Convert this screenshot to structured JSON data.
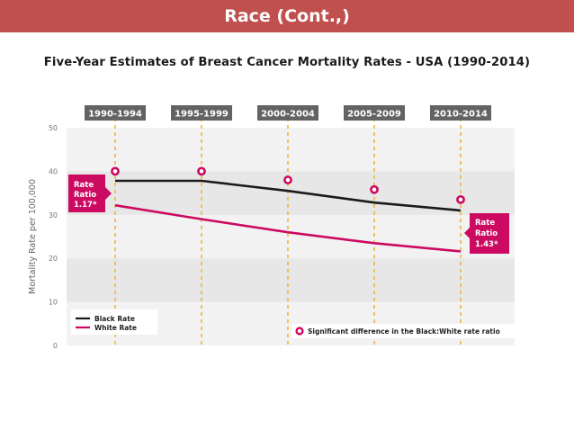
{
  "header": {
    "title": "Race (Cont.,)"
  },
  "chart_data": {
    "type": "line",
    "title": "Five-Year Estimates of Breast Cancer Mortality Rates - USA (1990-2014)",
    "categories": [
      "1990-1994",
      "1995-1999",
      "2000-2004",
      "2005-2009",
      "2010-2014"
    ],
    "ylabel": "Mortality Rate per 100,000",
    "ylim": [
      0,
      50
    ],
    "yticks": [
      0,
      10,
      20,
      30,
      40,
      50
    ],
    "series": [
      {
        "name": "Black Rate",
        "color": "#1a1a1a",
        "values": [
          37.8,
          37.8,
          35.5,
          32.8,
          31.0
        ]
      },
      {
        "name": "White Rate",
        "color": "#cc0a61",
        "values": [
          32.2,
          29.0,
          26.0,
          23.5,
          21.6
        ]
      }
    ],
    "significance_markers": [
      40.0,
      40.0,
      38.0,
      35.8,
      33.5
    ],
    "annotations": [
      {
        "label": "Rate",
        "sub": "Ratio",
        "value": "1.17*"
      },
      {
        "label": "Rate",
        "sub": "Ratio",
        "value": "1.43*"
      }
    ],
    "significance_legend": "Significant difference in the Black:White rate ratio",
    "grid": true,
    "legend": "bottom-left"
  },
  "colors": {
    "banner": "#c0504d",
    "accent": "#cc0a61",
    "black_line": "#1a1a1a",
    "band_dark": "#e7e7e7",
    "band_light": "#f2f2f2",
    "tag": "#636363",
    "guide": "#f0b53e"
  }
}
